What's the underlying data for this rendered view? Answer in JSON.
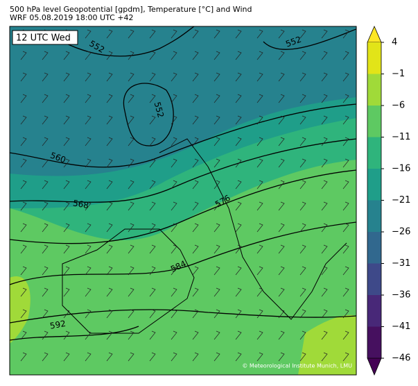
{
  "header": {
    "title": "500 hPa level Geopotential [gpdm], Temperature [°C] and Wind",
    "subtitle": "WRF 05.08.2019 18:00 UTC +42"
  },
  "map": {
    "time_label": "12 UTC Wed",
    "contour_labels": [
      552,
      552,
      552,
      560,
      568,
      576,
      584,
      592
    ],
    "credit": "© Meteorological Institute Munich, LMU"
  },
  "colorbar": {
    "ticks": [
      4,
      {
        "value": -1,
        "label": "−1"
      },
      {
        "value": -6,
        "label": "−6"
      },
      {
        "value": -11,
        "label": "−11"
      },
      {
        "value": -16,
        "label": "−16"
      },
      {
        "value": -21,
        "label": "−21"
      },
      {
        "value": -26,
        "label": "−26"
      },
      {
        "value": -31,
        "label": "−31"
      },
      {
        "value": -36,
        "label": "−36"
      },
      {
        "value": -41,
        "label": "−41"
      },
      {
        "value": -46,
        "label": "−46"
      }
    ],
    "colors": [
      "#fde725",
      "#e2e418",
      "#a0da39",
      "#5ec962",
      "#2fb47c",
      "#1f9e89",
      "#26828e",
      "#31688e",
      "#3e4989",
      "#482878",
      "#46105f",
      "#440154"
    ]
  }
}
